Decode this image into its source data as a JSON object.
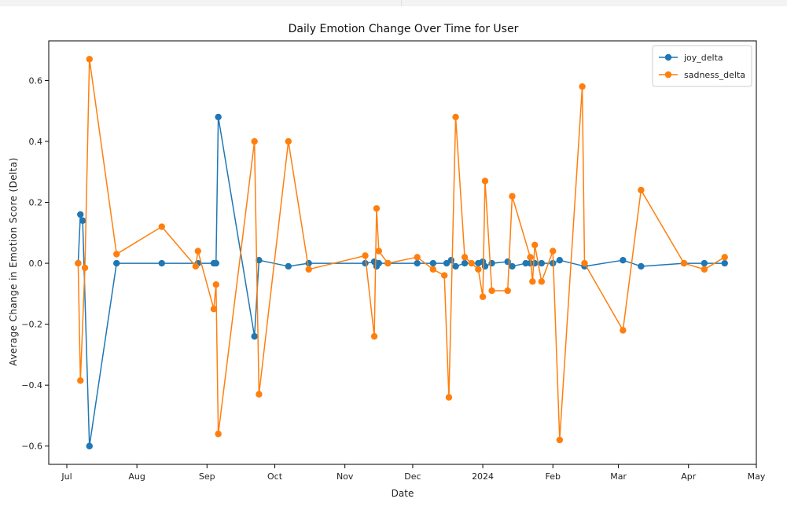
{
  "chart_data": {
    "type": "line",
    "title": "Daily Emotion Change Over Time for User",
    "xlabel": "Date",
    "ylabel": "Average Change in Emotion Score (Delta)",
    "xlim": [
      "2023-06-23",
      "2024-05-01"
    ],
    "ylim": [
      -0.66,
      0.73
    ],
    "x_ticks": [
      {
        "date": "2023-07-01",
        "label": "Jul"
      },
      {
        "date": "2023-08-01",
        "label": "Aug"
      },
      {
        "date": "2023-09-01",
        "label": "Sep"
      },
      {
        "date": "2023-10-01",
        "label": "Oct"
      },
      {
        "date": "2023-11-01",
        "label": "Nov"
      },
      {
        "date": "2023-12-01",
        "label": "Dec"
      },
      {
        "date": "2024-01-01",
        "label": "2024"
      },
      {
        "date": "2024-02-01",
        "label": "Feb"
      },
      {
        "date": "2024-03-01",
        "label": "Mar"
      },
      {
        "date": "2024-04-01",
        "label": "Apr"
      },
      {
        "date": "2024-05-01",
        "label": "May"
      }
    ],
    "y_ticks": [
      -0.6,
      -0.4,
      -0.2,
      0.0,
      0.2,
      0.4,
      0.6
    ],
    "y_tick_labels": [
      "−0.6",
      "−0.4",
      "−0.2",
      "0.0",
      "0.2",
      "0.4",
      "0.6"
    ],
    "grid": false,
    "legend_position": "top-right",
    "series": [
      {
        "name": "joy_delta",
        "color": "#1f77b4",
        "points": [
          [
            "2023-07-06",
            0.0
          ],
          [
            "2023-07-07",
            0.16
          ],
          [
            "2023-07-08",
            0.14
          ],
          [
            "2023-07-11",
            -0.6
          ],
          [
            "2023-07-23",
            0.0
          ],
          [
            "2023-08-12",
            0.0
          ],
          [
            "2023-08-28",
            0.0
          ],
          [
            "2023-09-04",
            0.0
          ],
          [
            "2023-09-05",
            0.0
          ],
          [
            "2023-09-06",
            0.48
          ],
          [
            "2023-09-22",
            -0.24
          ],
          [
            "2023-09-24",
            0.01
          ],
          [
            "2023-10-07",
            -0.01
          ],
          [
            "2023-10-16",
            0.0
          ],
          [
            "2023-11-10",
            0.0
          ],
          [
            "2023-11-14",
            0.005
          ],
          [
            "2023-11-15",
            -0.01
          ],
          [
            "2023-11-16",
            0.0
          ],
          [
            "2023-11-20",
            0.0
          ],
          [
            "2023-12-03",
            0.0
          ],
          [
            "2023-12-10",
            0.0
          ],
          [
            "2023-12-16",
            0.0
          ],
          [
            "2023-12-18",
            0.01
          ],
          [
            "2023-12-20",
            -0.01
          ],
          [
            "2023-12-24",
            0.0
          ],
          [
            "2023-12-30",
            0.0
          ],
          [
            "2024-01-01",
            0.005
          ],
          [
            "2024-01-02",
            -0.01
          ],
          [
            "2024-01-05",
            0.0
          ],
          [
            "2024-01-12",
            0.005
          ],
          [
            "2024-01-14",
            -0.01
          ],
          [
            "2024-01-20",
            0.0
          ],
          [
            "2024-01-22",
            0.0
          ],
          [
            "2024-01-24",
            0.0
          ],
          [
            "2024-01-27",
            0.0
          ],
          [
            "2024-02-01",
            0.0
          ],
          [
            "2024-02-04",
            0.01
          ],
          [
            "2024-02-15",
            -0.01
          ],
          [
            "2024-03-03",
            0.01
          ],
          [
            "2024-03-11",
            -0.01
          ],
          [
            "2024-03-30",
            0.0
          ],
          [
            "2024-04-08",
            0.0
          ],
          [
            "2024-04-17",
            0.0
          ]
        ]
      },
      {
        "name": "sadness_delta",
        "color": "#ff7f0e",
        "points": [
          [
            "2023-07-06",
            0.0
          ],
          [
            "2023-07-07",
            -0.385
          ],
          [
            "2023-07-09",
            -0.015
          ],
          [
            "2023-07-11",
            0.67
          ],
          [
            "2023-07-23",
            0.03
          ],
          [
            "2023-08-12",
            0.12
          ],
          [
            "2023-08-27",
            -0.01
          ],
          [
            "2023-08-28",
            0.04
          ],
          [
            "2023-09-04",
            -0.15
          ],
          [
            "2023-09-05",
            -0.07
          ],
          [
            "2023-09-06",
            -0.56
          ],
          [
            "2023-09-22",
            0.4
          ],
          [
            "2023-09-24",
            -0.43
          ],
          [
            "2023-10-07",
            0.4
          ],
          [
            "2023-10-16",
            -0.02
          ],
          [
            "2023-11-10",
            0.025
          ],
          [
            "2023-11-14",
            -0.24
          ],
          [
            "2023-11-15",
            0.18
          ],
          [
            "2023-11-16",
            0.04
          ],
          [
            "2023-11-20",
            0.0
          ],
          [
            "2023-12-03",
            0.02
          ],
          [
            "2023-12-10",
            -0.02
          ],
          [
            "2023-12-15",
            -0.04
          ],
          [
            "2023-12-17",
            -0.44
          ],
          [
            "2023-12-20",
            0.48
          ],
          [
            "2023-12-24",
            0.02
          ],
          [
            "2023-12-27",
            0.0
          ],
          [
            "2023-12-30",
            -0.02
          ],
          [
            "2024-01-01",
            -0.11
          ],
          [
            "2024-01-02",
            0.27
          ],
          [
            "2024-01-05",
            -0.09
          ],
          [
            "2024-01-12",
            -0.09
          ],
          [
            "2024-01-14",
            0.22
          ],
          [
            "2024-01-22",
            0.02
          ],
          [
            "2024-01-23",
            -0.06
          ],
          [
            "2024-01-24",
            0.06
          ],
          [
            "2024-01-27",
            -0.06
          ],
          [
            "2024-02-01",
            0.04
          ],
          [
            "2024-02-04",
            -0.58
          ],
          [
            "2024-02-14",
            0.58
          ],
          [
            "2024-02-15",
            0.0
          ],
          [
            "2024-03-03",
            -0.22
          ],
          [
            "2024-03-11",
            0.24
          ],
          [
            "2024-03-30",
            0.0
          ],
          [
            "2024-04-08",
            -0.02
          ],
          [
            "2024-04-17",
            0.02
          ]
        ]
      }
    ]
  }
}
